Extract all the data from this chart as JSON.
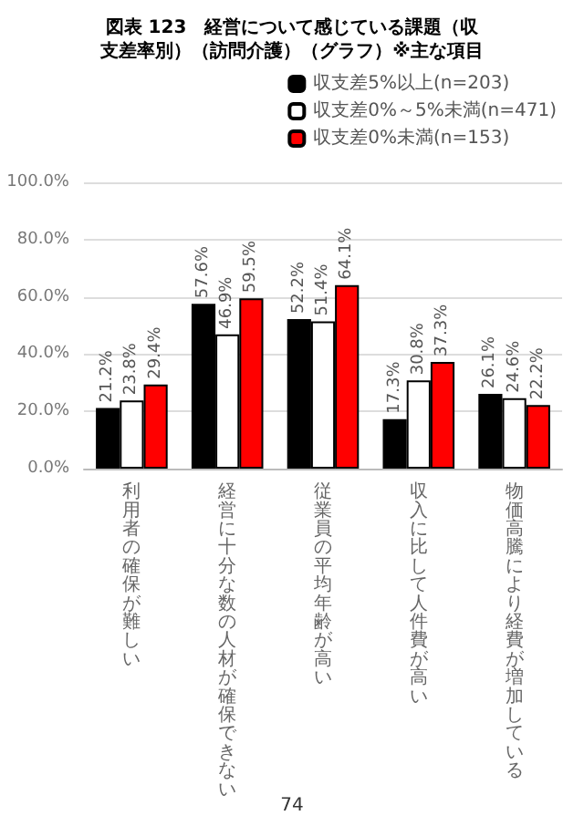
{
  "chart_data": {
    "type": "bar",
    "title": "図表 123　経営について感じている課題（収支差率別）（訪問介護）（グラフ）※主な項目",
    "categories": [
      "利用者の確保が難しい",
      "経営に十分な数の人材が確保できない",
      "従業員の平均年齢が高い",
      "収入に比して人件費が高い",
      "物価高騰により経費が増加している"
    ],
    "series": [
      {
        "name": "収支差5%以上(n=203)",
        "color": "#000000",
        "values": [
          21.2,
          57.6,
          52.2,
          17.3,
          26.1
        ],
        "value_labels": [
          "21.2%",
          "57.6%",
          "52.2%",
          "17.3%",
          "26.1%"
        ]
      },
      {
        "name": "収支差0%～5%未満(n=471)",
        "color": "#ffffff",
        "values": [
          23.8,
          46.9,
          51.4,
          30.8,
          24.6
        ],
        "value_labels": [
          "23.8%",
          "46.9%",
          "51.4%",
          "30.8%",
          "24.6%"
        ]
      },
      {
        "name": "収支差0%未満(n=153)",
        "color": "#ff0000",
        "values": [
          29.4,
          59.5,
          64.1,
          37.3,
          22.2
        ],
        "value_labels": [
          "29.4%",
          "59.5%",
          "64.1%",
          "37.3%",
          "22.2%"
        ]
      }
    ],
    "ylim": [
      0,
      100
    ],
    "yticks": [
      {
        "value": 0,
        "label": "0.0%"
      },
      {
        "value": 20,
        "label": "20.0%"
      },
      {
        "value": 40,
        "label": "40.0%"
      },
      {
        "value": 60,
        "label": "60.0%"
      },
      {
        "value": 80,
        "label": "80.0%"
      },
      {
        "value": 100,
        "label": "100.0%"
      }
    ],
    "grid": "y",
    "legend": "top right",
    "annotations": [
      "74"
    ]
  }
}
